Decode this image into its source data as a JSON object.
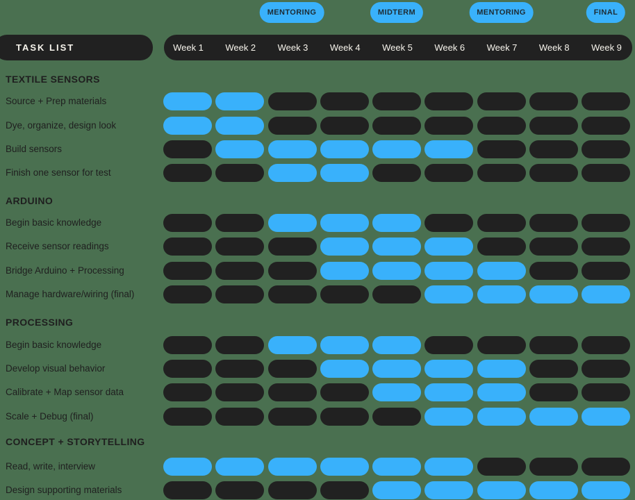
{
  "colors": {
    "background": "#4a7050",
    "bar": "#212121",
    "pill_active": "#39b1fb",
    "pill_inactive": "#212121",
    "badge_text": "#1d2b33",
    "header_text": "#f7f4ec",
    "label_text": "#1f1f1f"
  },
  "milestones": [
    {
      "label": "MENTORING",
      "week": 3
    },
    {
      "label": "MIDTERM",
      "week": 5
    },
    {
      "label": "MENTORING",
      "week": 7
    },
    {
      "label": "FINAL",
      "week": 9
    }
  ],
  "header": {
    "task_list_label": "TASK LIST",
    "weeks": [
      "Week 1",
      "Week 2",
      "Week 3",
      "Week 4",
      "Week 5",
      "Week 6",
      "Week 7",
      "Week 8",
      "Week 9"
    ]
  },
  "sections": [
    {
      "title": "TEXTILE SENSORS",
      "tasks": [
        {
          "label": "Source + Prep materials",
          "weeks": [
            1,
            1,
            0,
            0,
            0,
            0,
            0,
            0,
            0
          ]
        },
        {
          "label": "Dye, organize, design look",
          "weeks": [
            1,
            1,
            0,
            0,
            0,
            0,
            0,
            0,
            0
          ]
        },
        {
          "label": "Build sensors",
          "weeks": [
            0,
            1,
            1,
            1,
            1,
            1,
            0,
            0,
            0
          ]
        },
        {
          "label": "Finish one sensor for test",
          "weeks": [
            0,
            0,
            1,
            1,
            0,
            0,
            0,
            0,
            0
          ]
        }
      ]
    },
    {
      "title": "ARDUINO",
      "tasks": [
        {
          "label": "Begin basic knowledge",
          "weeks": [
            0,
            0,
            1,
            1,
            1,
            0,
            0,
            0,
            0
          ]
        },
        {
          "label": "Receive sensor readings",
          "weeks": [
            0,
            0,
            0,
            1,
            1,
            1,
            0,
            0,
            0
          ]
        },
        {
          "label": "Bridge Arduino + Processing",
          "weeks": [
            0,
            0,
            0,
            1,
            1,
            1,
            1,
            0,
            0
          ]
        },
        {
          "label": "Manage hardware/wiring (final)",
          "weeks": [
            0,
            0,
            0,
            0,
            0,
            1,
            1,
            1,
            1
          ]
        }
      ]
    },
    {
      "title": "PROCESSING",
      "tasks": [
        {
          "label": "Begin basic knowledge",
          "weeks": [
            0,
            0,
            1,
            1,
            1,
            0,
            0,
            0,
            0
          ]
        },
        {
          "label": "Develop visual behavior",
          "weeks": [
            0,
            0,
            0,
            1,
            1,
            1,
            1,
            0,
            0
          ]
        },
        {
          "label": "Calibrate + Map sensor data",
          "weeks": [
            0,
            0,
            0,
            0,
            1,
            1,
            1,
            0,
            0
          ]
        },
        {
          "label": "Scale + Debug (final)",
          "weeks": [
            0,
            0,
            0,
            0,
            0,
            1,
            1,
            1,
            1
          ]
        }
      ]
    },
    {
      "title": "CONCEPT + STORYTELLING",
      "tasks": [
        {
          "label": "Read, write, interview",
          "weeks": [
            1,
            1,
            1,
            1,
            1,
            1,
            0,
            0,
            0
          ]
        },
        {
          "label": "Design supporting materials",
          "weeks": [
            0,
            0,
            0,
            0,
            1,
            1,
            1,
            1,
            1
          ]
        }
      ]
    }
  ],
  "chart_data": {
    "type": "heatmap",
    "title": "Project schedule Gantt chart",
    "x": [
      "Week 1",
      "Week 2",
      "Week 3",
      "Week 4",
      "Week 5",
      "Week 6",
      "Week 7",
      "Week 8",
      "Week 9"
    ],
    "legend": {
      "active_color": "#39b1fb",
      "inactive_color": "#212121"
    },
    "annotations": [
      {
        "label": "MENTORING",
        "week": 3
      },
      {
        "label": "MIDTERM",
        "week": 5
      },
      {
        "label": "MENTORING",
        "week": 7
      },
      {
        "label": "FINAL",
        "week": 9
      }
    ],
    "rows": [
      {
        "section": "TEXTILE SENSORS",
        "task": "Source + Prep materials",
        "active_weeks": [
          1,
          2
        ]
      },
      {
        "section": "TEXTILE SENSORS",
        "task": "Dye, organize, design look",
        "active_weeks": [
          1,
          2
        ]
      },
      {
        "section": "TEXTILE SENSORS",
        "task": "Build sensors",
        "active_weeks": [
          2,
          3,
          4,
          5,
          6
        ]
      },
      {
        "section": "TEXTILE SENSORS",
        "task": "Finish one sensor for test",
        "active_weeks": [
          3,
          4
        ]
      },
      {
        "section": "ARDUINO",
        "task": "Begin basic knowledge",
        "active_weeks": [
          3,
          4,
          5
        ]
      },
      {
        "section": "ARDUINO",
        "task": "Receive sensor readings",
        "active_weeks": [
          4,
          5,
          6
        ]
      },
      {
        "section": "ARDUINO",
        "task": "Bridge Arduino + Processing",
        "active_weeks": [
          4,
          5,
          6,
          7
        ]
      },
      {
        "section": "ARDUINO",
        "task": "Manage hardware/wiring (final)",
        "active_weeks": [
          6,
          7,
          8,
          9
        ]
      },
      {
        "section": "PROCESSING",
        "task": "Begin basic knowledge",
        "active_weeks": [
          3,
          4,
          5
        ]
      },
      {
        "section": "PROCESSING",
        "task": "Develop visual behavior",
        "active_weeks": [
          4,
          5,
          6,
          7
        ]
      },
      {
        "section": "PROCESSING",
        "task": "Calibrate + Map sensor data",
        "active_weeks": [
          5,
          6,
          7
        ]
      },
      {
        "section": "PROCESSING",
        "task": "Scale + Debug (final)",
        "active_weeks": [
          6,
          7,
          8,
          9
        ]
      },
      {
        "section": "CONCEPT + STORYTELLING",
        "task": "Read, write, interview",
        "active_weeks": [
          1,
          2,
          3,
          4,
          5,
          6
        ]
      },
      {
        "section": "CONCEPT + STORYTELLING",
        "task": "Design supporting materials",
        "active_weeks": [
          5,
          6,
          7,
          8,
          9
        ]
      }
    ]
  }
}
